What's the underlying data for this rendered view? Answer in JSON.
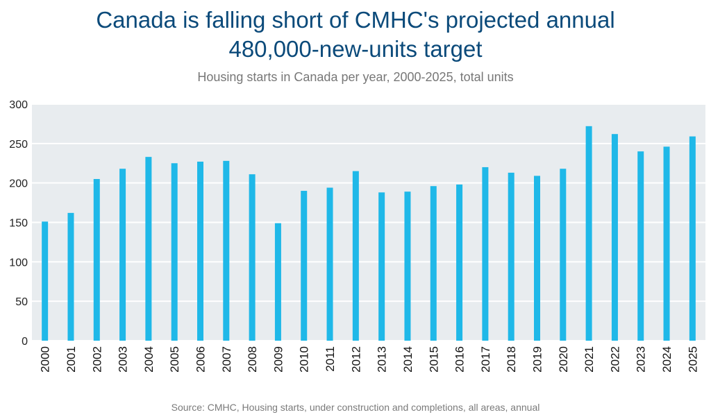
{
  "chart_data": {
    "type": "bar",
    "title_lines": [
      "Canada is falling short of CMHC's projected annual",
      "480,000-new-units target"
    ],
    "subtitle": "Housing starts in Canada per year, 2000-2025, total units",
    "source": "Source: CMHC, Housing starts, under construction and completions, all areas, annual",
    "categories": [
      "2000",
      "2001",
      "2002",
      "2003",
      "2004",
      "2005",
      "2006",
      "2007",
      "2008",
      "2009",
      "2010",
      "2011",
      "2012",
      "2013",
      "2014",
      "2015",
      "2016",
      "2017",
      "2018",
      "2019",
      "2020",
      "2021",
      "2022",
      "2023",
      "2024",
      "2025"
    ],
    "values": [
      151,
      162,
      205,
      218,
      233,
      225,
      227,
      228,
      211,
      149,
      190,
      194,
      215,
      188,
      189,
      196,
      198,
      220,
      213,
      209,
      218,
      272,
      262,
      240,
      246,
      259
    ],
    "ylim": [
      0,
      300
    ],
    "yticks": [
      "0",
      "50",
      "100",
      "150",
      "200",
      "250",
      "300"
    ],
    "grid": true,
    "colors": {
      "bar": "#1fb8e8",
      "plot_background": "#e8ecef",
      "gridline": "#ffffff",
      "title": "#0b4a7a",
      "subtitle": "#777777"
    }
  }
}
